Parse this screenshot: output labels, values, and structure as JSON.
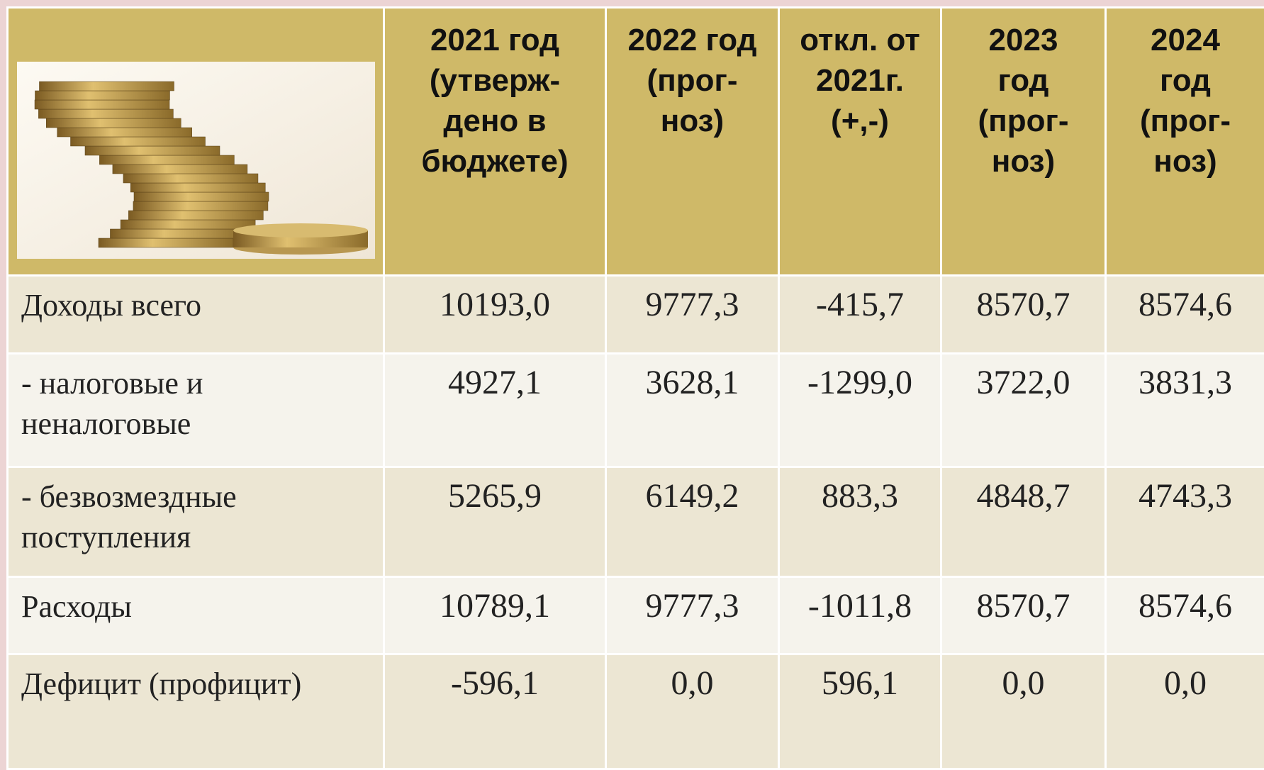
{
  "table": {
    "header": [
      "2021 год\n(утверж-\nдено в\nбюджете)",
      "2022 год\n(прог-\nноз)",
      "откл. от\n2021г.\n(+,-)",
      "2023\nгод\n(прог-\nноз)",
      "2024\nгод\n(прог-\nноз)"
    ],
    "rows": [
      {
        "label": "Доходы всего",
        "values": [
          "10193,0",
          "9777,3",
          "-415,7",
          "8570,7",
          "8574,6"
        ]
      },
      {
        "label": "- налоговые и\nненалоговые",
        "values": [
          "4927,1",
          "3628,1",
          "-1299,0",
          "3722,0",
          "3831,3"
        ]
      },
      {
        "label": "- безвозмездные\nпоступления",
        "values": [
          "5265,9",
          "6149,2",
          "883,3",
          "4848,7",
          "4743,3"
        ]
      },
      {
        "label": "Расходы",
        "values": [
          "10789,1",
          "9777,3",
          "-1011,8",
          "8570,7",
          "8574,6"
        ]
      },
      {
        "label": "Дефицит (профицит)",
        "values": [
          "-596,1",
          "0,0",
          "596,1",
          "0,0",
          "0,0"
        ]
      }
    ]
  }
}
